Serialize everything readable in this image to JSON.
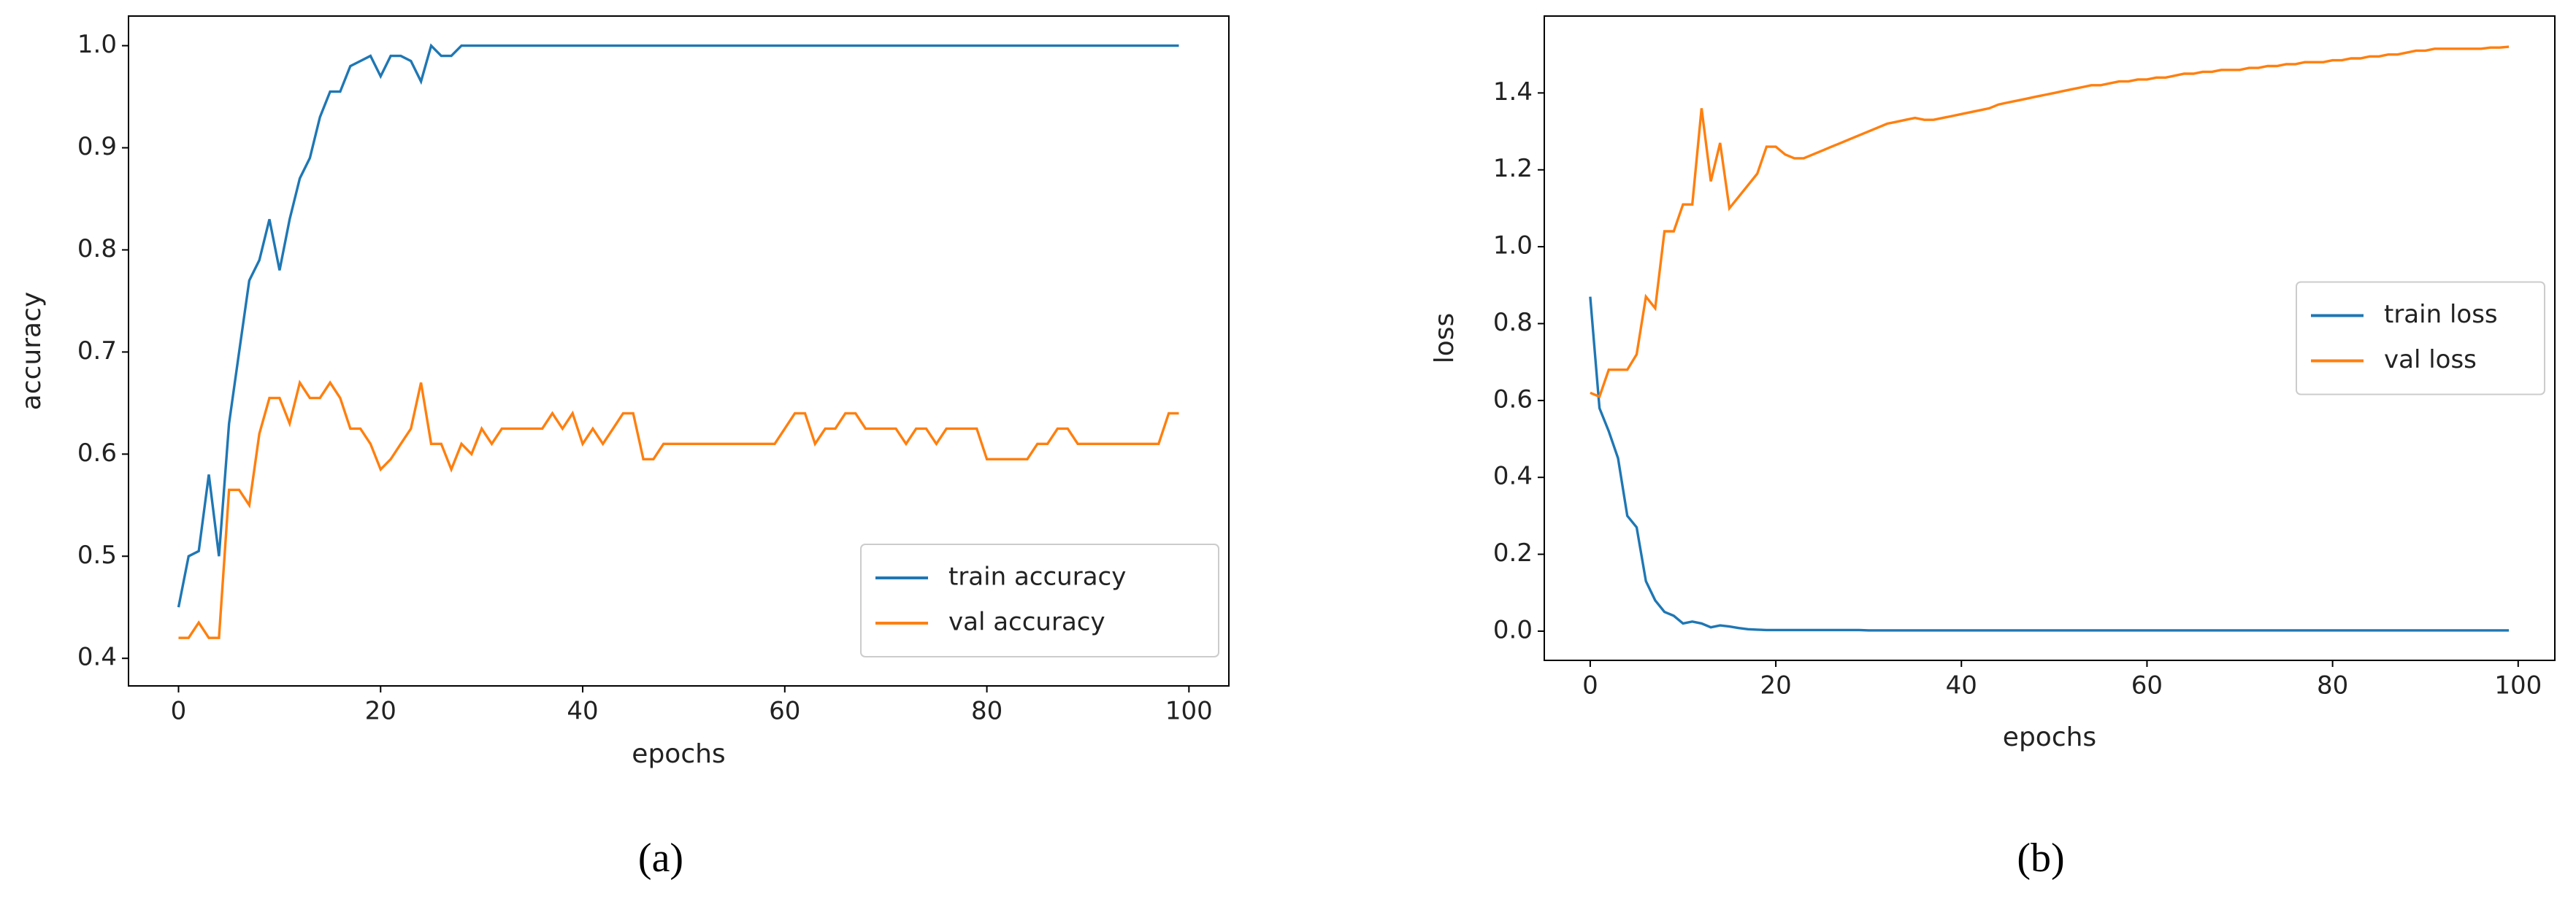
{
  "chart_data": [
    {
      "type": "line",
      "caption": "(a)",
      "x_label": "epochs",
      "y_label": "accuracy",
      "xlim": [
        -4.95,
        103.95
      ],
      "xticks": [
        0,
        20,
        40,
        60,
        80,
        100
      ],
      "ylim": [
        0.373,
        1.029
      ],
      "yticks": [
        0.4,
        0.5,
        0.6,
        0.7,
        0.8,
        0.9,
        {
          "value": 1,
          "label": "1.0"
        }
      ],
      "legend": "lower right",
      "x": [
        0,
        1,
        2,
        3,
        4,
        5,
        6,
        7,
        8,
        9,
        10,
        11,
        12,
        13,
        14,
        15,
        16,
        17,
        18,
        19,
        20,
        21,
        22,
        23,
        24,
        25,
        26,
        27,
        28,
        29,
        30,
        31,
        32,
        33,
        34,
        35,
        36,
        37,
        38,
        39,
        40,
        41,
        42,
        43,
        44,
        45,
        46,
        47,
        48,
        49,
        50,
        51,
        52,
        53,
        54,
        55,
        56,
        57,
        58,
        59,
        60,
        61,
        62,
        63,
        64,
        65,
        66,
        67,
        68,
        69,
        70,
        71,
        72,
        73,
        74,
        75,
        76,
        77,
        78,
        79,
        80,
        81,
        82,
        83,
        84,
        85,
        86,
        87,
        88,
        89,
        90,
        91,
        92,
        93,
        94,
        95,
        96,
        97,
        98,
        99
      ],
      "series": [
        {
          "name": "train accuracy",
          "color": "#1f77b4",
          "values": [
            0.45,
            0.5,
            0.505,
            0.58,
            0.5,
            0.63,
            0.7,
            0.77,
            0.79,
            0.83,
            0.78,
            0.83,
            0.87,
            0.89,
            0.93,
            0.955,
            0.955,
            0.98,
            0.985,
            0.99,
            0.97,
            0.99,
            0.99,
            0.985,
            0.965,
            1.0,
            0.99,
            0.99,
            1,
            1,
            1,
            1,
            1,
            1,
            1,
            1,
            1,
            1,
            1,
            1,
            1,
            1,
            1,
            1,
            1,
            1,
            1,
            1,
            1,
            1,
            1,
            1,
            1,
            1,
            1,
            1,
            1,
            1,
            1,
            1,
            1,
            1,
            1,
            1,
            1,
            1,
            1,
            1,
            1,
            1,
            1,
            1,
            1,
            1,
            1,
            1,
            1,
            1,
            1,
            1,
            1,
            1,
            1,
            1,
            1,
            1,
            1,
            1,
            1,
            1,
            1,
            1,
            1,
            1,
            1,
            1,
            1,
            1,
            1,
            1
          ]
        },
        {
          "name": "val accuracy",
          "color": "#ff7f0e",
          "values": [
            0.42,
            0.42,
            0.435,
            0.42,
            0.42,
            0.565,
            0.565,
            0.55,
            0.62,
            0.655,
            0.655,
            0.63,
            0.67,
            0.655,
            0.655,
            0.67,
            0.655,
            0.625,
            0.625,
            0.61,
            0.585,
            0.595,
            0.61,
            0.625,
            0.67,
            0.61,
            0.61,
            0.585,
            0.61,
            0.6,
            0.625,
            0.61,
            0.625,
            0.625,
            0.625,
            0.625,
            0.625,
            0.64,
            0.625,
            0.64,
            0.61,
            0.625,
            0.61,
            0.625,
            0.64,
            0.64,
            0.595,
            0.595,
            0.61,
            0.61,
            0.61,
            0.61,
            0.61,
            0.61,
            0.61,
            0.61,
            0.61,
            0.61,
            0.61,
            0.61,
            0.625,
            0.64,
            0.64,
            0.61,
            0.625,
            0.625,
            0.64,
            0.64,
            0.625,
            0.625,
            0.625,
            0.625,
            0.61,
            0.625,
            0.625,
            0.61,
            0.625,
            0.625,
            0.625,
            0.625,
            0.595,
            0.595,
            0.595,
            0.595,
            0.595,
            0.61,
            0.61,
            0.625,
            0.625,
            0.61,
            0.61,
            0.61,
            0.61,
            0.61,
            0.61,
            0.61,
            0.61,
            0.61,
            0.64,
            0.64
          ]
        }
      ]
    },
    {
      "type": "line",
      "caption": "(b)",
      "x_label": "epochs",
      "y_label": "loss",
      "xlim": [
        -4.95,
        103.95
      ],
      "xticks": [
        0,
        20,
        40,
        60,
        80,
        100
      ],
      "ylim": [
        -0.076,
        1.6
      ],
      "yticks": [
        {
          "value": 0,
          "label": "0.0"
        },
        0.2,
        0.4,
        0.6,
        0.8,
        {
          "value": 1,
          "label": "1.0"
        },
        1.2,
        1.4
      ],
      "legend": "center right",
      "x": [
        0,
        1,
        2,
        3,
        4,
        5,
        6,
        7,
        8,
        9,
        10,
        11,
        12,
        13,
        14,
        15,
        16,
        17,
        18,
        19,
        20,
        21,
        22,
        23,
        24,
        25,
        26,
        27,
        28,
        29,
        30,
        31,
        32,
        33,
        34,
        35,
        36,
        37,
        38,
        39,
        40,
        41,
        42,
        43,
        44,
        45,
        46,
        47,
        48,
        49,
        50,
        51,
        52,
        53,
        54,
        55,
        56,
        57,
        58,
        59,
        60,
        61,
        62,
        63,
        64,
        65,
        66,
        67,
        68,
        69,
        70,
        71,
        72,
        73,
        74,
        75,
        76,
        77,
        78,
        79,
        80,
        81,
        82,
        83,
        84,
        85,
        86,
        87,
        88,
        89,
        90,
        91,
        92,
        93,
        94,
        95,
        96,
        97,
        98,
        99
      ],
      "series": [
        {
          "name": "train loss",
          "color": "#1f77b4",
          "values": [
            0.87,
            0.58,
            0.52,
            0.45,
            0.3,
            0.27,
            0.13,
            0.08,
            0.05,
            0.04,
            0.02,
            0.025,
            0.02,
            0.01,
            0.015,
            0.012,
            0.008,
            0.005,
            0.004,
            0.003,
            0.003,
            0.003,
            0.003,
            0.003,
            0.003,
            0.003,
            0.003,
            0.003,
            0.003,
            0.003,
            0.002,
            0.002,
            0.002,
            0.002,
            0.002,
            0.002,
            0.002,
            0.002,
            0.002,
            0.002,
            0.002,
            0.002,
            0.002,
            0.002,
            0.002,
            0.002,
            0.002,
            0.002,
            0.002,
            0.002,
            0.002,
            0.002,
            0.002,
            0.002,
            0.002,
            0.002,
            0.002,
            0.002,
            0.002,
            0.002,
            0.002,
            0.002,
            0.002,
            0.002,
            0.002,
            0.002,
            0.002,
            0.002,
            0.002,
            0.002,
            0.002,
            0.002,
            0.002,
            0.002,
            0.002,
            0.002,
            0.002,
            0.002,
            0.002,
            0.002,
            0.002,
            0.002,
            0.002,
            0.002,
            0.002,
            0.002,
            0.002,
            0.002,
            0.002,
            0.002,
            0.002,
            0.002,
            0.002,
            0.002,
            0.002,
            0.002,
            0.002,
            0.002,
            0.002,
            0.002
          ]
        },
        {
          "name": "val loss",
          "color": "#ff7f0e",
          "values": [
            0.62,
            0.61,
            0.68,
            0.68,
            0.68,
            0.72,
            0.87,
            0.84,
            1.04,
            1.04,
            1.11,
            1.11,
            1.36,
            1.17,
            1.27,
            1.1,
            1.13,
            1.16,
            1.19,
            1.26,
            1.26,
            1.24,
            1.23,
            1.23,
            1.24,
            1.25,
            1.26,
            1.27,
            1.28,
            1.29,
            1.3,
            1.31,
            1.32,
            1.325,
            1.33,
            1.335,
            1.33,
            1.33,
            1.335,
            1.34,
            1.345,
            1.35,
            1.355,
            1.36,
            1.37,
            1.375,
            1.38,
            1.385,
            1.39,
            1.395,
            1.4,
            1.405,
            1.41,
            1.415,
            1.42,
            1.42,
            1.425,
            1.43,
            1.43,
            1.435,
            1.435,
            1.44,
            1.44,
            1.445,
            1.45,
            1.45,
            1.455,
            1.455,
            1.46,
            1.46,
            1.46,
            1.465,
            1.465,
            1.47,
            1.47,
            1.475,
            1.475,
            1.48,
            1.48,
            1.48,
            1.485,
            1.485,
            1.49,
            1.49,
            1.495,
            1.495,
            1.5,
            1.5,
            1.505,
            1.51,
            1.51,
            1.515,
            1.515,
            1.515,
            1.515,
            1.515,
            1.515,
            1.518,
            1.518,
            1.52
          ]
        }
      ]
    }
  ]
}
